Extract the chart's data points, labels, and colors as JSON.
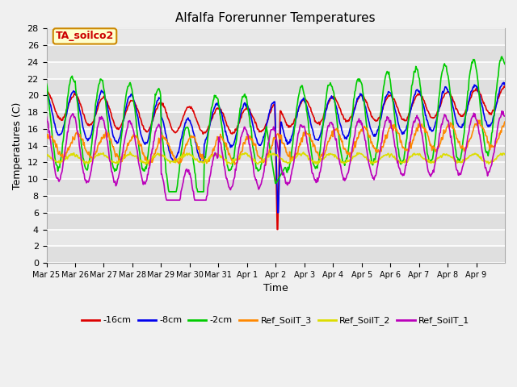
{
  "title": "Alfalfa Forerunner Temperatures",
  "xlabel": "Time",
  "ylabel": "Temperatures (C)",
  "ylim": [
    0,
    28
  ],
  "yticks": [
    0,
    2,
    4,
    6,
    8,
    10,
    12,
    14,
    16,
    18,
    20,
    22,
    24,
    26,
    28
  ],
  "bg_color": "#f0f0f0",
  "plot_bg_color": "#e0e0e0",
  "series": [
    {
      "label": "-16cm",
      "color": "#dd0000"
    },
    {
      "label": "-8cm",
      "color": "#0000ee"
    },
    {
      "label": "-2cm",
      "color": "#00cc00"
    },
    {
      "label": "Ref_SoilT_3",
      "color": "#ff8800"
    },
    {
      "label": "Ref_SoilT_2",
      "color": "#dddd00"
    },
    {
      "label": "Ref_SoilT_1",
      "color": "#bb00bb"
    }
  ],
  "annotation_text": "TA_soilco2",
  "annotation_color": "#cc0000",
  "annotation_bg": "#ffffcc",
  "annotation_border": "#cc8800",
  "day_labels": [
    "Mar 25",
    "Mar 26",
    "Mar 27",
    "Mar 28",
    "Mar 29",
    "Mar 30",
    "Mar 31",
    "Apr 1",
    "Apr 2",
    "Apr 3",
    "Apr 4",
    "Apr 5",
    "Apr 6",
    "Apr 7",
    "Apr 8",
    "Apr 9"
  ],
  "n_days": 16,
  "pts_per_day": 48
}
